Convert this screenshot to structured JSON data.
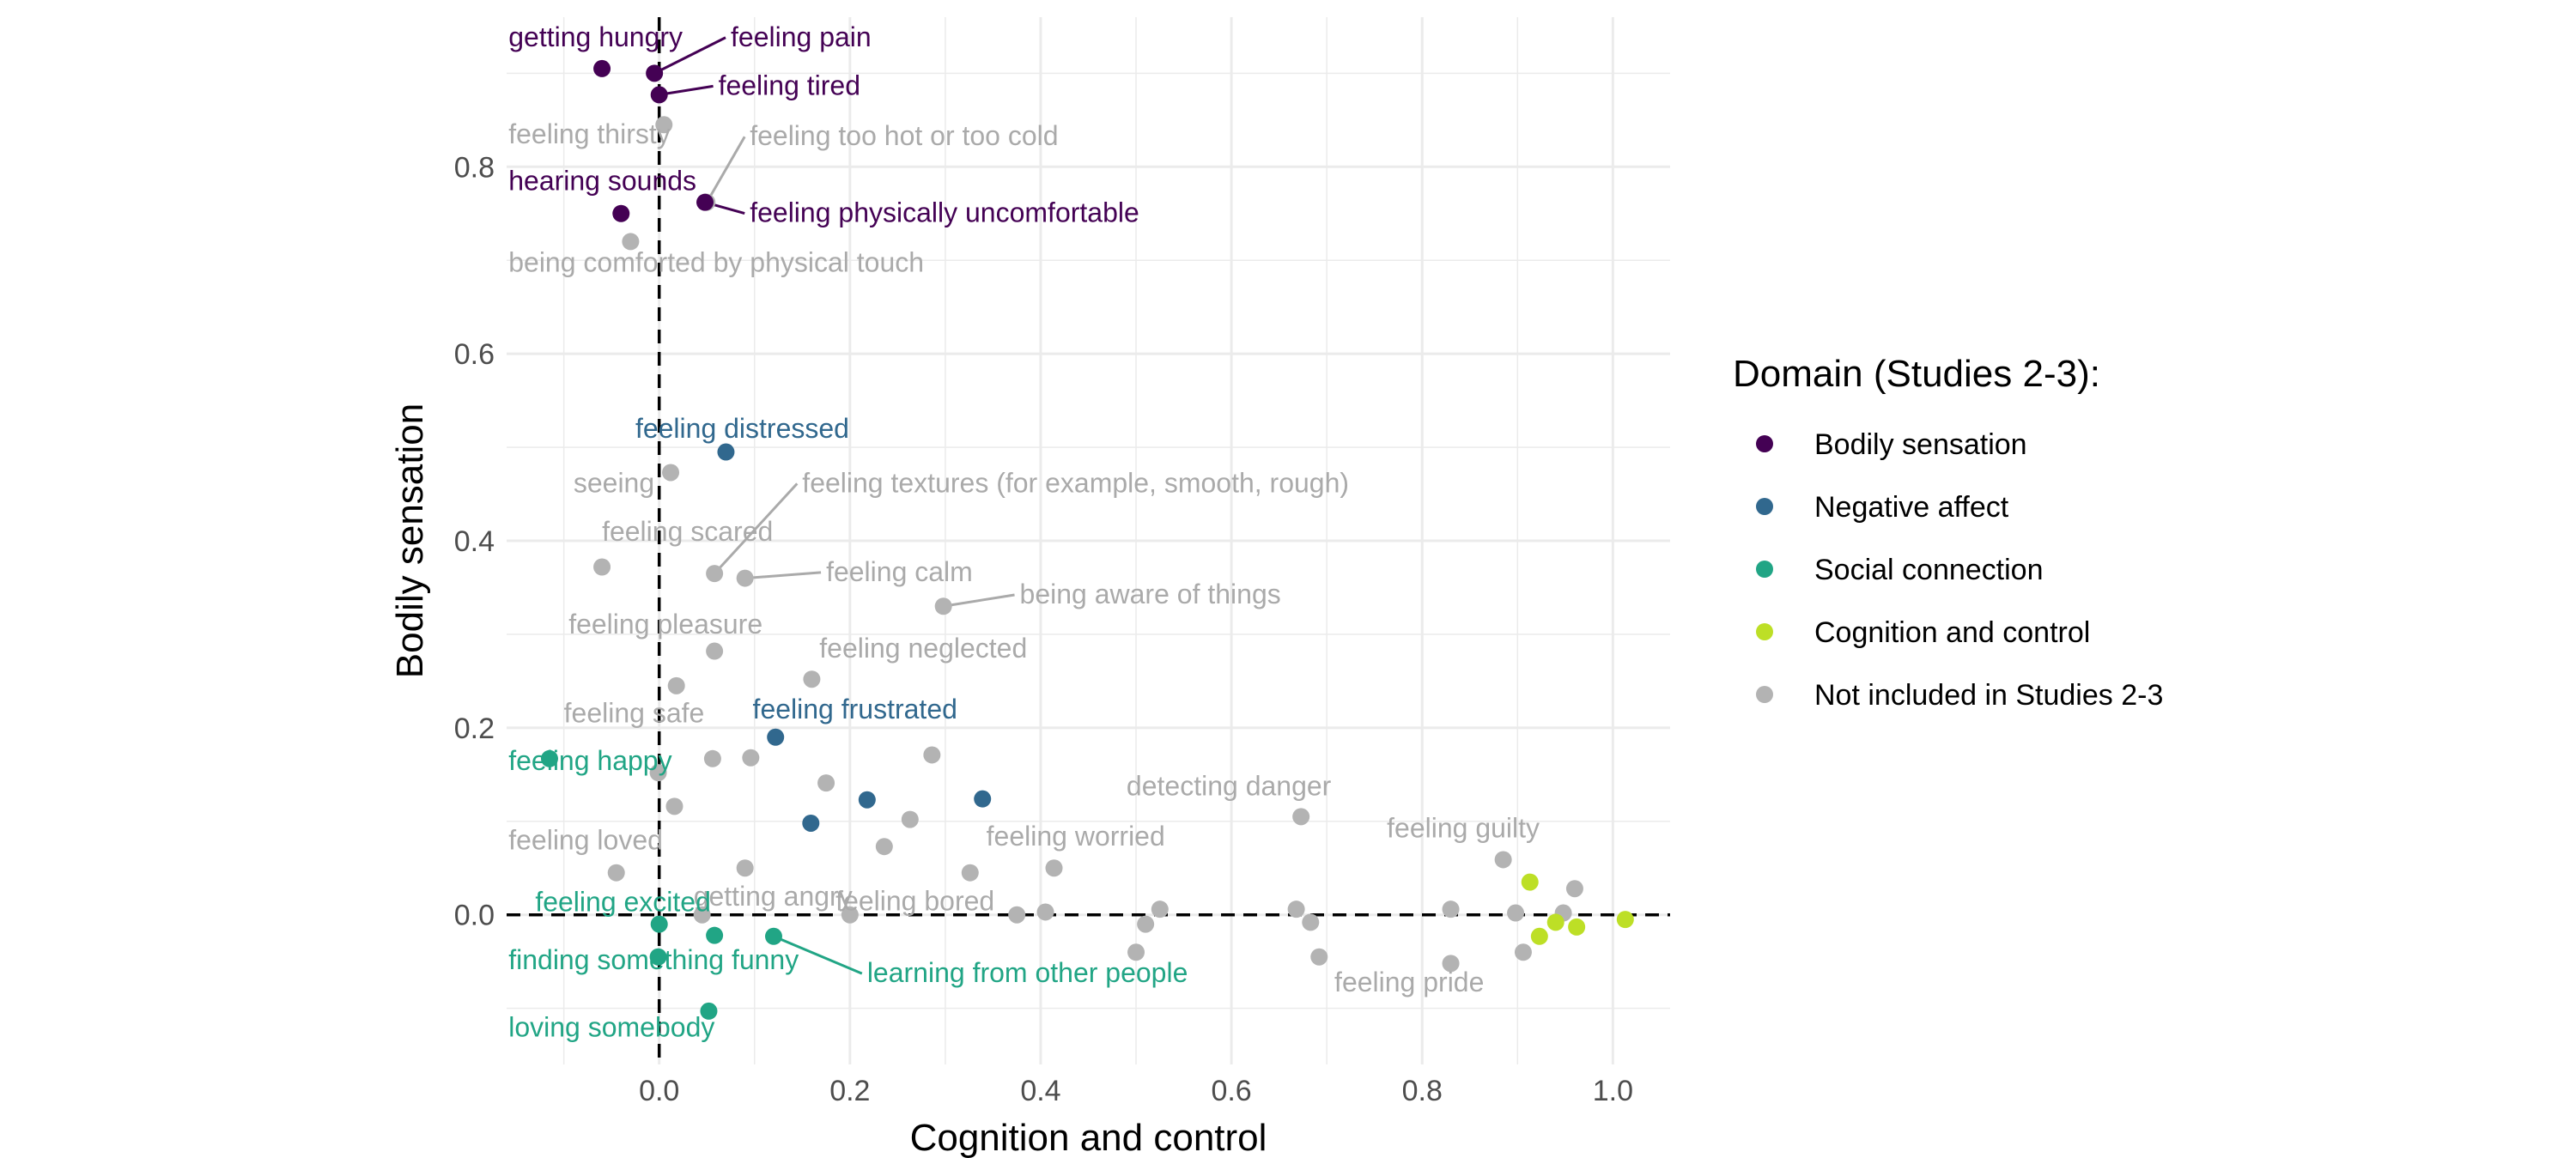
{
  "chart_data": {
    "type": "scatter",
    "xlabel": "Cognition and control",
    "ylabel": "Bodily sensation",
    "xlim": [
      -0.16,
      1.06
    ],
    "ylim": [
      -0.16,
      0.96
    ],
    "x_ticks": [
      "0.0",
      "0.2",
      "0.4",
      "0.6",
      "0.8",
      "1.0"
    ],
    "y_ticks": [
      "0.0",
      "0.2",
      "0.4",
      "0.6",
      "0.8"
    ],
    "reference_lines": {
      "x": 0,
      "y": 0,
      "style": "dashed"
    },
    "grid": true,
    "legend": {
      "title": "Domain (Studies 2-3):",
      "placement": "right",
      "entries": [
        {
          "key": "bodily",
          "label": "Bodily sensation",
          "color": "#440154"
        },
        {
          "key": "negative",
          "label": "Negative affect",
          "color": "#31688e"
        },
        {
          "key": "social",
          "label": "Social connection",
          "color": "#21a585"
        },
        {
          "key": "cognition",
          "label": "Cognition and control",
          "color": "#bddf26"
        },
        {
          "key": "none",
          "label": "Not included in Studies 2-3",
          "color": "#b3b3b3"
        }
      ]
    },
    "points": [
      {
        "x": -0.06,
        "y": 0.905,
        "group": "bodily",
        "label": "getting hungry",
        "lx": -0.158,
        "ly": 0.929,
        "anchor": "start"
      },
      {
        "x": -0.005,
        "y": 0.9,
        "group": "bodily",
        "label": "feeling pain",
        "lx": 0.075,
        "ly": 0.929,
        "anchor": "start",
        "leader": true
      },
      {
        "x": 0.0,
        "y": 0.877,
        "group": "bodily",
        "label": "feeling tired",
        "lx": 0.062,
        "ly": 0.877,
        "anchor": "start",
        "leader": true
      },
      {
        "x": 0.005,
        "y": 0.845,
        "group": "none",
        "label": "feeling thirsty",
        "lx": -0.158,
        "ly": 0.825,
        "anchor": "start"
      },
      {
        "x": 0.05,
        "y": 0.762,
        "group": "none",
        "label": "feeling too hot or too cold",
        "lx": 0.095,
        "ly": 0.823,
        "anchor": "start",
        "leader": true
      },
      {
        "x": -0.04,
        "y": 0.75,
        "group": "bodily",
        "label": "hearing sounds",
        "lx": -0.158,
        "ly": 0.775,
        "anchor": "start"
      },
      {
        "x": 0.048,
        "y": 0.762,
        "group": "bodily",
        "label": "feeling physically uncomfortable",
        "lx": 0.095,
        "ly": 0.741,
        "anchor": "start",
        "leader": true
      },
      {
        "x": -0.03,
        "y": 0.72,
        "group": "none",
        "label": "being comforted by physical touch",
        "lx": -0.158,
        "ly": 0.688,
        "anchor": "start"
      },
      {
        "x": 0.07,
        "y": 0.495,
        "group": "negative",
        "label": "feeling distressed",
        "lx": -0.025,
        "ly": 0.51,
        "anchor": "start"
      },
      {
        "x": 0.012,
        "y": 0.473,
        "group": "none",
        "label": "seeing",
        "lx": -0.005,
        "ly": 0.452,
        "anchor": "end"
      },
      {
        "x": 0.058,
        "y": 0.365,
        "group": "none",
        "label": "feeling textures (for example, smooth, rough)",
        "lx": 0.15,
        "ly": 0.452,
        "anchor": "start",
        "leader": true
      },
      {
        "x": -0.06,
        "y": 0.372,
        "group": "none",
        "label": "feeling scared",
        "lx": -0.06,
        "ly": 0.4,
        "anchor": "start"
      },
      {
        "x": 0.09,
        "y": 0.36,
        "group": "none",
        "label": "feeling calm",
        "lx": 0.175,
        "ly": 0.357,
        "anchor": "start",
        "leader": true
      },
      {
        "x": 0.298,
        "y": 0.33,
        "group": "none",
        "label": "being aware of things",
        "lx": 0.378,
        "ly": 0.333,
        "anchor": "start",
        "leader": true
      },
      {
        "x": 0.058,
        "y": 0.282,
        "group": "none",
        "label": "feeling pleasure",
        "lx": -0.095,
        "ly": 0.301,
        "anchor": "start"
      },
      {
        "x": 0.16,
        "y": 0.252,
        "group": "none",
        "label": "feeling neglected",
        "lx": 0.168,
        "ly": 0.275,
        "anchor": "start"
      },
      {
        "x": 0.018,
        "y": 0.245,
        "group": "none"
      },
      {
        "x": 0.122,
        "y": 0.19,
        "group": "negative",
        "label": "feeling frustrated",
        "lx": 0.098,
        "ly": 0.21,
        "anchor": "start"
      },
      {
        "x": -0.001,
        "y": 0.152,
        "group": "none",
        "label": "feeling safe",
        "lx": -0.1,
        "ly": 0.206,
        "anchor": "start"
      },
      {
        "x": -0.115,
        "y": 0.167,
        "group": "social",
        "label": "feeling happy",
        "lx": -0.158,
        "ly": 0.155,
        "anchor": "start"
      },
      {
        "x": 0.056,
        "y": 0.167,
        "group": "none"
      },
      {
        "x": 0.096,
        "y": 0.168,
        "group": "none"
      },
      {
        "x": 0.286,
        "y": 0.171,
        "group": "none"
      },
      {
        "x": 0.016,
        "y": 0.116,
        "group": "none"
      },
      {
        "x": 0.175,
        "y": 0.141,
        "group": "none"
      },
      {
        "x": 0.218,
        "y": 0.123,
        "group": "negative"
      },
      {
        "x": 0.339,
        "y": 0.124,
        "group": "negative"
      },
      {
        "x": 0.159,
        "y": 0.098,
        "group": "negative"
      },
      {
        "x": 0.263,
        "y": 0.102,
        "group": "none"
      },
      {
        "x": 0.673,
        "y": 0.105,
        "group": "none",
        "label": "detecting danger",
        "lx": 0.49,
        "ly": 0.128,
        "anchor": "start"
      },
      {
        "x": 0.236,
        "y": 0.073,
        "group": "none"
      },
      {
        "x": 0.414,
        "y": 0.05,
        "group": "none",
        "label": "feeling worried",
        "lx": 0.343,
        "ly": 0.074,
        "anchor": "start"
      },
      {
        "x": 0.326,
        "y": 0.045,
        "group": "none"
      },
      {
        "x": 0.09,
        "y": 0.05,
        "group": "none"
      },
      {
        "x": -0.045,
        "y": 0.045,
        "group": "none",
        "label": "feeling loved",
        "lx": -0.158,
        "ly": 0.07,
        "anchor": "start"
      },
      {
        "x": 0.885,
        "y": 0.059,
        "group": "none",
        "label": "feeling guilty",
        "lx": 0.763,
        "ly": 0.083,
        "anchor": "start"
      },
      {
        "x": 0.913,
        "y": 0.035,
        "group": "cognition"
      },
      {
        "x": 0.96,
        "y": 0.028,
        "group": "none"
      },
      {
        "x": 0.045,
        "y": 0.0,
        "group": "none",
        "label": "getting angry",
        "lx": 0.036,
        "ly": 0.01,
        "anchor": "start"
      },
      {
        "x": 0.2,
        "y": 0.0,
        "group": "none",
        "label": "feeling bored",
        "lx": 0.185,
        "ly": 0.005,
        "anchor": "start"
      },
      {
        "x": 0.0,
        "y": -0.01,
        "group": "social",
        "label": "feeling excited",
        "lx": -0.13,
        "ly": 0.004,
        "anchor": "start"
      },
      {
        "x": 0.375,
        "y": 0.0,
        "group": "none"
      },
      {
        "x": 0.405,
        "y": 0.003,
        "group": "none"
      },
      {
        "x": 0.525,
        "y": 0.006,
        "group": "none"
      },
      {
        "x": 0.51,
        "y": -0.01,
        "group": "none"
      },
      {
        "x": 0.668,
        "y": 0.006,
        "group": "none"
      },
      {
        "x": 0.683,
        "y": -0.008,
        "group": "none"
      },
      {
        "x": 0.83,
        "y": 0.006,
        "group": "none"
      },
      {
        "x": 0.898,
        "y": 0.002,
        "group": "none"
      },
      {
        "x": 0.948,
        "y": 0.002,
        "group": "none"
      },
      {
        "x": 0.94,
        "y": -0.008,
        "group": "cognition"
      },
      {
        "x": 0.962,
        "y": -0.013,
        "group": "cognition"
      },
      {
        "x": 1.013,
        "y": -0.005,
        "group": "cognition"
      },
      {
        "x": 0.923,
        "y": -0.023,
        "group": "cognition"
      },
      {
        "x": 0.058,
        "y": -0.022,
        "group": "social"
      },
      {
        "x": 0.12,
        "y": -0.023,
        "group": "social",
        "label": "learning from other people",
        "lx": 0.218,
        "ly": -0.072,
        "anchor": "start",
        "leader": true
      },
      {
        "x": -0.001,
        "y": -0.045,
        "group": "social",
        "label": "finding something funny",
        "lx": -0.158,
        "ly": -0.058,
        "anchor": "start"
      },
      {
        "x": 0.5,
        "y": -0.04,
        "group": "none"
      },
      {
        "x": 0.692,
        "y": -0.045,
        "group": "none"
      },
      {
        "x": 0.906,
        "y": -0.04,
        "group": "none"
      },
      {
        "x": 0.83,
        "y": -0.052,
        "group": "none",
        "label": "feeling pride",
        "lx": 0.708,
        "ly": -0.082,
        "anchor": "start"
      },
      {
        "x": 0.052,
        "y": -0.103,
        "group": "social",
        "label": "loving somebody",
        "lx": -0.158,
        "ly": -0.13,
        "anchor": "start"
      }
    ]
  }
}
